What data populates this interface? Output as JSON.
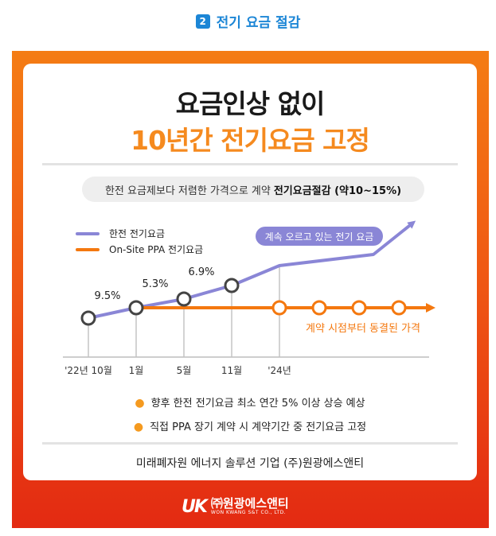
{
  "section": {
    "number": "2",
    "title": "전기 요금 절감"
  },
  "headline": {
    "line1": "요금인상 없이",
    "line2": "10년간 전기요금 고정"
  },
  "subtitle": {
    "normal": "한전 요금제보다 저렴한 가격으로 계약",
    "bold": "전기요금절감 (약10~15%)"
  },
  "colors": {
    "purple": "#8a86d6",
    "orange": "#f4780f",
    "accent": "#f58a1f"
  },
  "chart_data": {
    "type": "line",
    "x": [
      "'22년 10월",
      "1월",
      "5월",
      "11월",
      "'24년"
    ],
    "legend": [
      {
        "name": "한전 전기요금",
        "color": "#8a86d6"
      },
      {
        "name": "On-Site PPA 전기요금",
        "color": "#f4780f"
      }
    ],
    "series": [
      {
        "name": "한전 전기요금",
        "increase_labels": [
          "9.5%",
          "5.3%",
          "6.9%"
        ]
      },
      {
        "name": "On-Site PPA 전기요금"
      }
    ],
    "annotations": [
      {
        "text": "계속 오르고 있는 전기 요금",
        "series": "한전 전기요금"
      },
      {
        "text": "계약 시점부터 동결된 가격",
        "series": "On-Site PPA 전기요금"
      }
    ]
  },
  "bullets": [
    "향후 한전 전기요금 최소 연간 5% 이상 상승 예상",
    "직접 PPA 장기 계약 시 계약기간 중 전기요금 고정"
  ],
  "company_line": "미래폐자원 에너지 솔루션 기업  (주)원광에스앤티",
  "logo": {
    "mark": "UK",
    "name": "㈜원광에스앤티",
    "sub": "WON KWANG S&T CO., LTD."
  }
}
